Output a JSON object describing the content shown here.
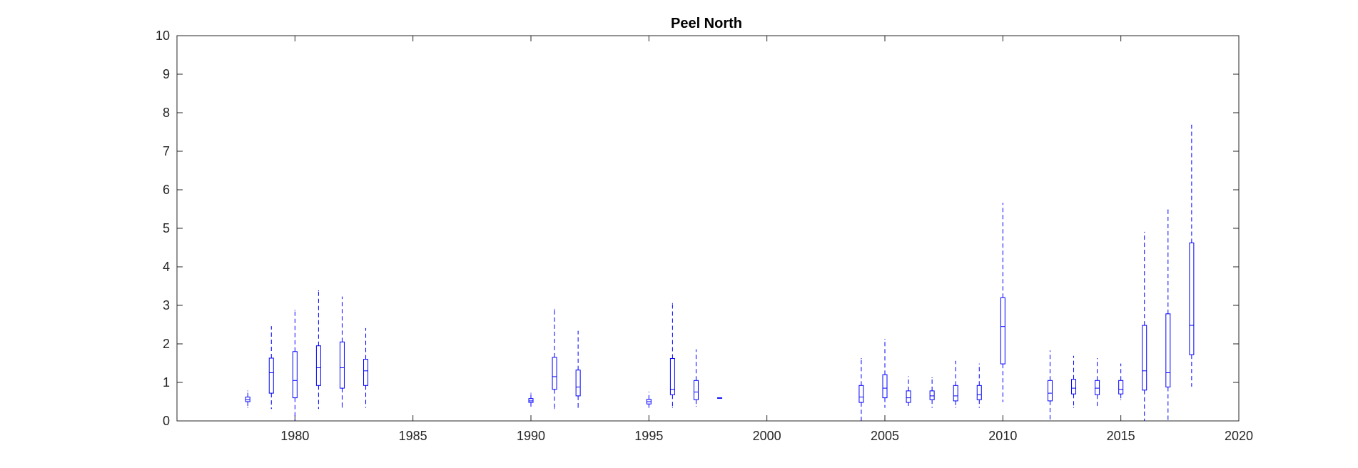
{
  "chart_data": {
    "type": "boxplot",
    "title": "Peel North",
    "xlabel": "",
    "ylabel": "",
    "xlim": [
      1975,
      2020
    ],
    "ylim": [
      0,
      10
    ],
    "xticks": [
      1980,
      1985,
      1990,
      1995,
      2000,
      2005,
      2010,
      2015,
      2020
    ],
    "yticks": [
      0,
      1,
      2,
      3,
      4,
      5,
      6,
      7,
      8,
      9,
      10
    ],
    "grid": false,
    "color": "#0000ff",
    "boxes": [
      {
        "x": 1978,
        "whisker_low": 0.35,
        "q1": 0.5,
        "median": 0.55,
        "q3": 0.62,
        "whisker_high": 0.78
      },
      {
        "x": 1979,
        "whisker_low": 0.32,
        "q1": 0.72,
        "median": 1.25,
        "q3": 1.63,
        "whisker_high": 2.45
      },
      {
        "x": 1980,
        "whisker_low": 0.0,
        "q1": 0.6,
        "median": 1.05,
        "q3": 1.8,
        "whisker_high": 2.87
      },
      {
        "x": 1981,
        "whisker_low": 0.32,
        "q1": 0.92,
        "median": 1.38,
        "q3": 1.95,
        "whisker_high": 3.38
      },
      {
        "x": 1982,
        "whisker_low": 0.35,
        "q1": 0.85,
        "median": 1.38,
        "q3": 2.05,
        "whisker_high": 3.22
      },
      {
        "x": 1983,
        "whisker_low": 0.35,
        "q1": 0.92,
        "median": 1.3,
        "q3": 1.6,
        "whisker_high": 2.4
      },
      {
        "x": 1990,
        "whisker_low": 0.38,
        "q1": 0.48,
        "median": 0.52,
        "q3": 0.58,
        "whisker_high": 0.72
      },
      {
        "x": 1991,
        "whisker_low": 0.32,
        "q1": 0.82,
        "median": 1.15,
        "q3": 1.65,
        "whisker_high": 2.9
      },
      {
        "x": 1992,
        "whisker_low": 0.35,
        "q1": 0.65,
        "median": 0.88,
        "q3": 1.32,
        "whisker_high": 2.33
      },
      {
        "x": 1995,
        "whisker_low": 0.35,
        "q1": 0.44,
        "median": 0.5,
        "q3": 0.56,
        "whisker_high": 0.75
      },
      {
        "x": 1996,
        "whisker_low": 0.35,
        "q1": 0.68,
        "median": 0.82,
        "q3": 1.62,
        "whisker_high": 3.05
      },
      {
        "x": 1997,
        "whisker_low": 0.38,
        "q1": 0.55,
        "median": 0.75,
        "q3": 1.05,
        "whisker_high": 1.85
      },
      {
        "x": 1998,
        "whisker_low": 0.6,
        "q1": 0.6,
        "median": 0.6,
        "q3": 0.6,
        "whisker_high": 0.6
      },
      {
        "x": 2004,
        "whisker_low": 0.0,
        "q1": 0.48,
        "median": 0.62,
        "q3": 0.92,
        "whisker_high": 1.62
      },
      {
        "x": 2005,
        "whisker_low": 0.35,
        "q1": 0.6,
        "median": 0.85,
        "q3": 1.2,
        "whisker_high": 2.12
      },
      {
        "x": 2006,
        "whisker_low": 0.4,
        "q1": 0.48,
        "median": 0.6,
        "q3": 0.78,
        "whisker_high": 1.15
      },
      {
        "x": 2007,
        "whisker_low": 0.35,
        "q1": 0.55,
        "median": 0.65,
        "q3": 0.78,
        "whisker_high": 1.12
      },
      {
        "x": 2008,
        "whisker_low": 0.35,
        "q1": 0.52,
        "median": 0.65,
        "q3": 0.92,
        "whisker_high": 1.55
      },
      {
        "x": 2009,
        "whisker_low": 0.35,
        "q1": 0.55,
        "median": 0.68,
        "q3": 0.92,
        "whisker_high": 1.48
      },
      {
        "x": 2010,
        "whisker_low": 0.5,
        "q1": 1.48,
        "median": 2.45,
        "q3": 3.2,
        "whisker_high": 5.65
      },
      {
        "x": 2012,
        "whisker_low": 0.0,
        "q1": 0.52,
        "median": 0.72,
        "q3": 1.05,
        "whisker_high": 1.82
      },
      {
        "x": 2013,
        "whisker_low": 0.35,
        "q1": 0.7,
        "median": 0.85,
        "q3": 1.08,
        "whisker_high": 1.68
      },
      {
        "x": 2014,
        "whisker_low": 0.4,
        "q1": 0.68,
        "median": 0.85,
        "q3": 1.05,
        "whisker_high": 1.62
      },
      {
        "x": 2015,
        "whisker_low": 0.55,
        "q1": 0.7,
        "median": 0.82,
        "q3": 1.05,
        "whisker_high": 1.48
      },
      {
        "x": 2016,
        "whisker_low": 0.0,
        "q1": 0.8,
        "median": 1.3,
        "q3": 2.48,
        "whisker_high": 4.9
      },
      {
        "x": 2017,
        "whisker_low": 0.0,
        "q1": 0.88,
        "median": 1.25,
        "q3": 2.78,
        "whisker_high": 5.48
      },
      {
        "x": 2018,
        "whisker_low": 0.9,
        "q1": 1.72,
        "median": 2.48,
        "q3": 4.62,
        "whisker_high": 7.68
      }
    ]
  }
}
